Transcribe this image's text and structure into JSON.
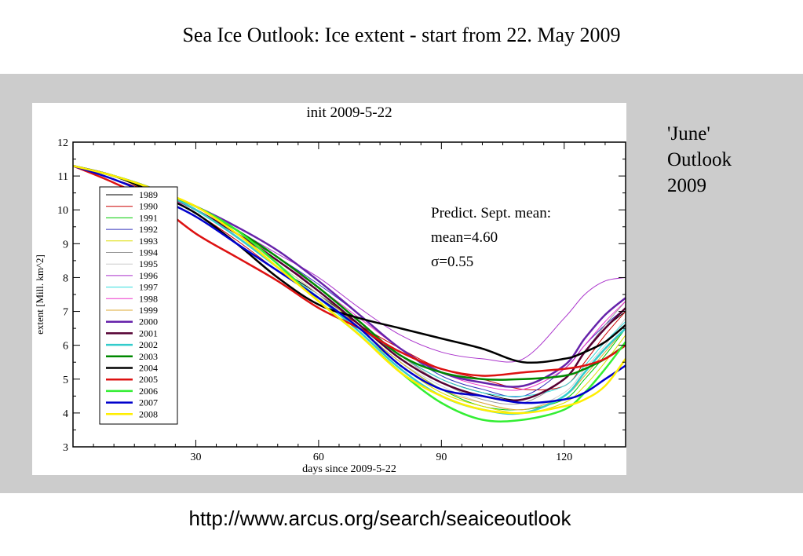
{
  "slide": {
    "title": "Sea Ice Outlook: Ice extent - start from 22. May 2009",
    "side_note": [
      "'June'",
      "Outlook",
      "2009"
    ],
    "footer_url": "http://www.arcus.org/search/seaiceoutlook"
  },
  "chart_data": {
    "type": "line",
    "title": "init 2009-5-22",
    "xlabel": "days since 2009-5-22",
    "ylabel": "extent [Mill. km^2]",
    "xlim": [
      0,
      135
    ],
    "ylim": [
      3,
      12
    ],
    "x_ticks": [
      30,
      60,
      90,
      120
    ],
    "y_ticks": [
      3,
      4,
      5,
      6,
      7,
      8,
      9,
      10,
      11,
      12
    ],
    "grid": false,
    "legend_position": "left",
    "annotation": [
      "Predict. Sept. mean:",
      "mean=4.60",
      "σ=0.55"
    ],
    "x": [
      0,
      10,
      20,
      30,
      40,
      50,
      60,
      70,
      80,
      90,
      100,
      110,
      120,
      125,
      130,
      135
    ],
    "series": [
      {
        "name": "1989",
        "color": "#000000",
        "width": 1,
        "values": [
          11.3,
          11.0,
          10.6,
          10.0,
          9.2,
          8.3,
          7.5,
          6.6,
          5.7,
          5.0,
          4.6,
          4.4,
          5.0,
          5.8,
          6.5,
          7.0
        ]
      },
      {
        "name": "1990",
        "color": "#cc0000",
        "width": 1,
        "values": [
          11.3,
          10.9,
          10.5,
          9.9,
          9.1,
          8.2,
          7.4,
          6.6,
          5.9,
          5.3,
          5.0,
          4.7,
          4.8,
          5.5,
          6.3,
          7.0
        ]
      },
      {
        "name": "1991",
        "color": "#00cc00",
        "width": 1,
        "values": [
          11.3,
          11.0,
          10.6,
          10.1,
          9.4,
          8.5,
          7.6,
          6.5,
          5.5,
          4.7,
          4.2,
          4.1,
          4.4,
          5.0,
          5.7,
          6.5
        ]
      },
      {
        "name": "1992",
        "color": "#3333bb",
        "width": 1,
        "values": [
          11.3,
          11.0,
          10.5,
          10.0,
          9.3,
          8.6,
          7.8,
          6.9,
          5.9,
          5.1,
          4.7,
          4.5,
          5.3,
          6.0,
          6.6,
          7.1
        ]
      },
      {
        "name": "1993",
        "color": "#dddd00",
        "width": 1,
        "values": [
          11.3,
          11.0,
          10.6,
          10.1,
          9.3,
          8.4,
          7.5,
          6.4,
          5.4,
          4.6,
          4.2,
          4.0,
          4.3,
          4.8,
          5.5,
          6.3
        ]
      },
      {
        "name": "1994",
        "color": "#999999",
        "width": 1,
        "values": [
          11.3,
          11.0,
          10.6,
          10.1,
          9.4,
          8.6,
          7.7,
          6.7,
          5.7,
          4.9,
          4.4,
          4.3,
          5.0,
          5.8,
          6.6,
          7.3
        ]
      },
      {
        "name": "1995",
        "color": "#cccccc",
        "width": 1,
        "values": [
          11.3,
          11.0,
          10.5,
          10.0,
          9.3,
          8.4,
          7.5,
          6.5,
          5.5,
          4.8,
          4.3,
          4.1,
          4.6,
          5.3,
          6.0,
          6.8
        ]
      },
      {
        "name": "1996",
        "color": "#aa33cc",
        "width": 1,
        "values": [
          11.3,
          11.0,
          10.6,
          10.1,
          9.4,
          8.7,
          8.0,
          7.1,
          6.3,
          5.8,
          5.6,
          5.6,
          6.8,
          7.5,
          7.9,
          8.0
        ]
      },
      {
        "name": "1997",
        "color": "#33dddd",
        "width": 1,
        "values": [
          11.3,
          11.0,
          10.6,
          10.0,
          9.2,
          8.3,
          7.4,
          6.5,
          5.7,
          5.0,
          4.6,
          4.5,
          4.8,
          5.4,
          6.1,
          6.7
        ]
      },
      {
        "name": "1998",
        "color": "#ee33cc",
        "width": 1,
        "values": [
          11.3,
          11.0,
          10.5,
          10.0,
          9.3,
          8.5,
          7.7,
          6.8,
          5.9,
          5.2,
          4.8,
          4.7,
          5.3,
          6.0,
          6.7,
          7.3
        ]
      },
      {
        "name": "1999",
        "color": "#ddaa33",
        "width": 1,
        "values": [
          11.3,
          11.0,
          10.6,
          10.1,
          9.4,
          8.5,
          7.6,
          6.5,
          5.5,
          4.7,
          4.3,
          4.1,
          4.5,
          5.1,
          5.8,
          6.5
        ]
      },
      {
        "name": "2000",
        "color": "#6622aa",
        "width": 2.5,
        "values": [
          11.3,
          11.0,
          10.6,
          10.1,
          9.5,
          8.8,
          7.9,
          6.9,
          5.9,
          5.2,
          4.9,
          4.8,
          5.4,
          6.2,
          6.9,
          7.4
        ]
      },
      {
        "name": "2001",
        "color": "#550033",
        "width": 2.5,
        "values": [
          11.3,
          11.0,
          10.6,
          10.0,
          9.3,
          8.5,
          7.6,
          6.6,
          5.6,
          4.9,
          4.5,
          4.4,
          5.0,
          5.8,
          6.5,
          7.1
        ]
      },
      {
        "name": "2002",
        "color": "#33cccc",
        "width": 2.5,
        "values": [
          11.3,
          11.0,
          10.6,
          10.0,
          9.2,
          8.3,
          7.4,
          6.4,
          5.3,
          4.5,
          4.1,
          4.0,
          4.5,
          5.2,
          5.9,
          6.5
        ]
      },
      {
        "name": "2003",
        "color": "#008800",
        "width": 2.5,
        "values": [
          11.3,
          11.0,
          10.6,
          10.1,
          9.4,
          8.6,
          7.7,
          6.7,
          5.7,
          5.2,
          5.0,
          5.0,
          5.1,
          5.3,
          5.6,
          6.0
        ]
      },
      {
        "name": "2004",
        "color": "#000000",
        "width": 2.5,
        "values": [
          11.3,
          11.0,
          10.5,
          9.9,
          9.0,
          8.0,
          7.2,
          6.8,
          6.5,
          6.2,
          5.9,
          5.5,
          5.6,
          5.8,
          6.1,
          6.6
        ]
      },
      {
        "name": "2005",
        "color": "#dd1111",
        "width": 2.5,
        "values": [
          11.3,
          10.8,
          10.2,
          9.3,
          8.6,
          7.9,
          7.1,
          6.5,
          5.8,
          5.3,
          5.1,
          5.2,
          5.3,
          5.4,
          5.6,
          6.0
        ]
      },
      {
        "name": "2006",
        "color": "#33ee33",
        "width": 2.5,
        "values": [
          11.3,
          11.0,
          10.6,
          10.1,
          9.4,
          8.4,
          7.3,
          6.3,
          5.2,
          4.3,
          3.8,
          3.8,
          4.1,
          4.6,
          5.3,
          6.1
        ]
      },
      {
        "name": "2007",
        "color": "#0000cc",
        "width": 2.5,
        "values": [
          11.3,
          10.9,
          10.4,
          9.8,
          9.0,
          8.2,
          7.4,
          6.5,
          5.4,
          4.7,
          4.5,
          4.3,
          4.4,
          4.6,
          5.0,
          5.4
        ]
      },
      {
        "name": "2008",
        "color": "#ffee00",
        "width": 2.5,
        "values": [
          11.3,
          11.0,
          10.6,
          10.1,
          9.3,
          8.3,
          7.3,
          6.3,
          5.2,
          4.5,
          4.1,
          4.0,
          4.2,
          4.4,
          4.8,
          5.6
        ]
      }
    ]
  }
}
